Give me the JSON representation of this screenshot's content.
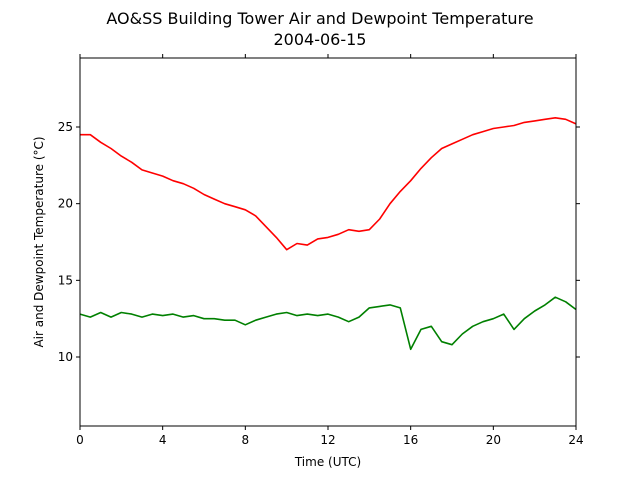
{
  "chart_data": {
    "type": "line",
    "title": "AO&SS Building Tower Air and Dewpoint Temperature",
    "subtitle": "2004-06-15",
    "xlabel": "Time (UTC)",
    "ylabel": "Air and Dewpoint Temperature (°C)",
    "xlim": [
      0,
      24
    ],
    "ylim": [
      5.5,
      29.5
    ],
    "xticks": [
      0,
      4,
      8,
      12,
      16,
      20,
      24
    ],
    "yticks": [
      10,
      15,
      20,
      25
    ],
    "grid": false,
    "legend": "none",
    "series": [
      {
        "color": "#ff0000",
        "x": [
          0,
          0.5,
          1,
          1.5,
          2,
          2.5,
          3,
          3.5,
          4,
          4.5,
          5,
          5.5,
          6,
          6.5,
          7,
          7.5,
          8,
          8.5,
          9,
          9.5,
          10,
          10.5,
          11,
          11.5,
          12,
          12.5,
          13,
          13.5,
          14,
          14.5,
          15,
          15.5,
          16,
          16.5,
          17,
          17.5,
          18,
          18.5,
          19,
          19.5,
          20,
          20.5,
          21,
          21.5,
          22,
          22.5,
          23,
          23.5,
          24
        ],
        "y": [
          24.5,
          24.5,
          24.0,
          23.6,
          23.1,
          22.7,
          22.2,
          22.0,
          21.8,
          21.5,
          21.3,
          21.0,
          20.6,
          20.3,
          20.0,
          19.8,
          19.6,
          19.2,
          18.5,
          17.8,
          17.0,
          17.4,
          17.3,
          17.7,
          17.8,
          18.0,
          18.3,
          18.2,
          18.3,
          19.0,
          20.0,
          20.8,
          21.5,
          22.3,
          23.0,
          23.6,
          23.9,
          24.2,
          24.5,
          24.7,
          24.9,
          25.0,
          25.1,
          25.3,
          25.4,
          25.5,
          25.6,
          25.5,
          25.2
        ]
      },
      {
        "color": "#008000",
        "x": [
          0,
          0.5,
          1,
          1.5,
          2,
          2.5,
          3,
          3.5,
          4,
          4.5,
          5,
          5.5,
          6,
          6.5,
          7,
          7.5,
          8,
          8.5,
          9,
          9.5,
          10,
          10.5,
          11,
          11.5,
          12,
          12.5,
          13,
          13.5,
          14,
          14.5,
          15,
          15.5,
          16,
          16.5,
          17,
          17.5,
          18,
          18.5,
          19,
          19.5,
          20,
          20.5,
          21,
          21.5,
          22,
          22.5,
          23,
          23.5,
          24
        ],
        "y": [
          12.8,
          12.6,
          12.9,
          12.6,
          12.9,
          12.8,
          12.6,
          12.8,
          12.7,
          12.8,
          12.6,
          12.7,
          12.5,
          12.5,
          12.4,
          12.4,
          12.1,
          12.4,
          12.6,
          12.8,
          12.9,
          12.7,
          12.8,
          12.7,
          12.8,
          12.6,
          12.3,
          12.6,
          13.2,
          13.3,
          13.4,
          13.2,
          10.5,
          11.8,
          12.0,
          11.0,
          10.8,
          11.5,
          12.0,
          12.3,
          12.5,
          12.8,
          11.8,
          12.5,
          13.0,
          13.4,
          13.9,
          13.6,
          13.1
        ]
      }
    ]
  }
}
